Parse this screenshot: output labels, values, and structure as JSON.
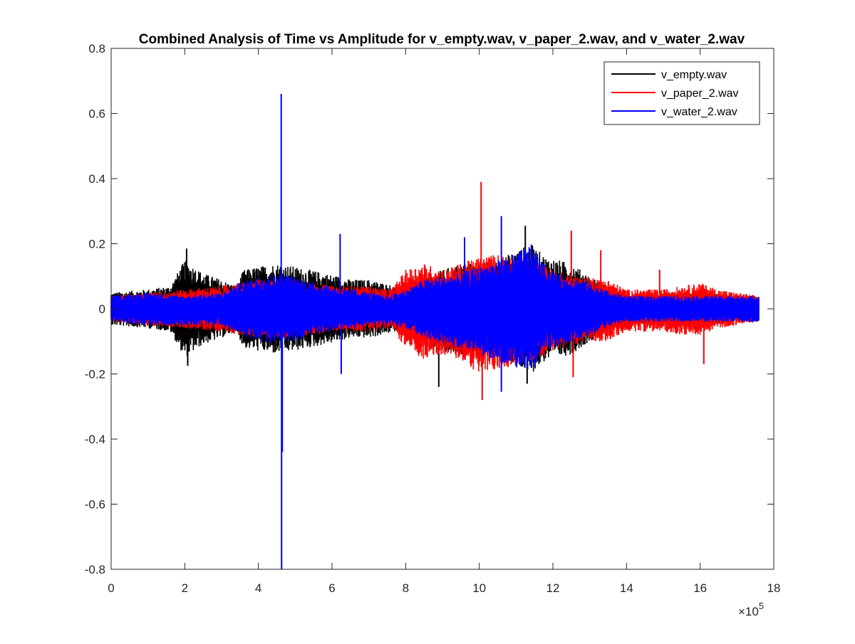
{
  "chart_data": {
    "type": "line",
    "title": "Combined Analysis of Time vs Amplitude for v_empty.wav, v_paper_2.wav, and v_water_2.wav",
    "xlabel": "",
    "ylabel": "",
    "xlim": [
      0,
      18
    ],
    "ylim": [
      -0.8,
      0.8
    ],
    "x_exponent_label": {
      "base": "×10",
      "exponent": "5"
    },
    "x_ticks": [
      {
        "value": 0,
        "label": "0"
      },
      {
        "value": 2,
        "label": "2"
      },
      {
        "value": 4,
        "label": "4"
      },
      {
        "value": 6,
        "label": "6"
      },
      {
        "value": 8,
        "label": "8"
      },
      {
        "value": 10,
        "label": "10"
      },
      {
        "value": 12,
        "label": "12"
      },
      {
        "value": 14,
        "label": "14"
      },
      {
        "value": 16,
        "label": "16"
      },
      {
        "value": 18,
        "label": "18"
      }
    ],
    "y_ticks": [
      {
        "value": 0.8,
        "label": "0.8"
      },
      {
        "value": 0.6,
        "label": "0.6"
      },
      {
        "value": 0.4,
        "label": "0.4"
      },
      {
        "value": 0.2,
        "label": "0.2"
      },
      {
        "value": 0,
        "label": "0"
      },
      {
        "value": -0.2,
        "label": "-0.2"
      },
      {
        "value": -0.4,
        "label": "-0.4"
      },
      {
        "value": -0.6,
        "label": "-0.6"
      },
      {
        "value": -0.8,
        "label": "-0.8"
      }
    ],
    "grid": false,
    "legend_position": "top-right",
    "series": [
      {
        "name": "v_empty.wav",
        "color": "#000000",
        "envelope_x": [
          0,
          1.0,
          1.6,
          2.0,
          2.5,
          3.0,
          3.4,
          3.6,
          4.0,
          4.5,
          5.0,
          5.8,
          6.2,
          6.5,
          7.0,
          7.4,
          8.0,
          8.5,
          9.0,
          9.5,
          10.0,
          10.5,
          11.0,
          11.4,
          11.8,
          12.5,
          13.0,
          13.5,
          14.0,
          15.0,
          16.0,
          17.0,
          17.6
        ],
        "envelope_upper": [
          0.05,
          0.06,
          0.07,
          0.15,
          0.11,
          0.09,
          0.07,
          0.12,
          0.13,
          0.14,
          0.13,
          0.11,
          0.1,
          0.09,
          0.09,
          0.08,
          0.06,
          0.1,
          0.12,
          0.14,
          0.14,
          0.15,
          0.18,
          0.2,
          0.16,
          0.14,
          0.1,
          0.07,
          0.04,
          0.04,
          0.05,
          0.04,
          0.04
        ],
        "envelope_lower": [
          -0.05,
          -0.06,
          -0.07,
          -0.15,
          -0.11,
          -0.09,
          -0.07,
          -0.12,
          -0.13,
          -0.14,
          -0.13,
          -0.11,
          -0.1,
          -0.09,
          -0.09,
          -0.08,
          -0.06,
          -0.1,
          -0.14,
          -0.14,
          -0.14,
          -0.15,
          -0.18,
          -0.2,
          -0.16,
          -0.14,
          -0.1,
          -0.07,
          -0.04,
          -0.04,
          -0.05,
          -0.04,
          -0.04
        ],
        "spikes": [
          {
            "x": 2.05,
            "y": 0.185
          },
          {
            "x": 2.08,
            "y": -0.175
          },
          {
            "x": 8.9,
            "y": -0.24
          },
          {
            "x": 11.25,
            "y": 0.255
          },
          {
            "x": 11.3,
            "y": -0.23
          }
        ]
      },
      {
        "name": "v_paper_2.wav",
        "color": "#ff0000",
        "envelope_x": [
          0,
          1.0,
          2.0,
          3.0,
          4.0,
          5.0,
          6.0,
          7.0,
          7.6,
          8.0,
          8.5,
          9.0,
          9.5,
          10.0,
          10.5,
          11.0,
          11.5,
          12.0,
          12.5,
          13.0,
          13.5,
          14.0,
          14.5,
          15.0,
          15.5,
          16.0,
          16.5,
          17.0,
          17.6
        ],
        "envelope_upper": [
          0.04,
          0.05,
          0.06,
          0.07,
          0.09,
          0.09,
          0.07,
          0.07,
          0.06,
          0.12,
          0.14,
          0.12,
          0.14,
          0.16,
          0.17,
          0.16,
          0.15,
          0.12,
          0.1,
          0.1,
          0.09,
          0.06,
          0.06,
          0.06,
          0.07,
          0.08,
          0.06,
          0.05,
          0.04
        ],
        "envelope_lower": [
          -0.04,
          -0.05,
          -0.06,
          -0.07,
          -0.09,
          -0.09,
          -0.07,
          -0.07,
          -0.06,
          -0.12,
          -0.16,
          -0.14,
          -0.16,
          -0.2,
          -0.19,
          -0.17,
          -0.16,
          -0.13,
          -0.11,
          -0.1,
          -0.1,
          -0.07,
          -0.07,
          -0.07,
          -0.08,
          -0.08,
          -0.06,
          -0.05,
          -0.04
        ],
        "spikes": [
          {
            "x": 10.05,
            "y": 0.39
          },
          {
            "x": 10.08,
            "y": -0.28
          },
          {
            "x": 12.5,
            "y": 0.24
          },
          {
            "x": 12.55,
            "y": -0.21
          },
          {
            "x": 13.3,
            "y": 0.18
          },
          {
            "x": 14.9,
            "y": 0.12
          },
          {
            "x": 16.1,
            "y": -0.17
          }
        ]
      },
      {
        "name": "v_water_2.wav",
        "color": "#0000ff",
        "envelope_x": [
          0,
          1.0,
          2.0,
          3.0,
          3.5,
          4.0,
          4.5,
          5.0,
          5.5,
          6.0,
          6.3,
          6.6,
          7.0,
          7.5,
          8.0,
          8.5,
          9.0,
          9.5,
          10.0,
          10.5,
          11.0,
          11.4,
          11.8,
          12.3,
          12.8,
          13.2,
          13.6,
          14.0,
          15.0,
          16.0,
          17.0,
          17.6
        ],
        "envelope_upper": [
          0.04,
          0.05,
          0.04,
          0.05,
          0.08,
          0.1,
          0.11,
          0.1,
          0.08,
          0.07,
          0.06,
          0.06,
          0.05,
          0.04,
          0.06,
          0.09,
          0.1,
          0.11,
          0.13,
          0.15,
          0.17,
          0.2,
          0.13,
          0.1,
          0.09,
          0.07,
          0.05,
          0.04,
          0.04,
          0.04,
          0.04,
          0.04
        ],
        "envelope_lower": [
          -0.04,
          -0.05,
          -0.05,
          -0.05,
          -0.08,
          -0.1,
          -0.11,
          -0.1,
          -0.08,
          -0.07,
          -0.06,
          -0.06,
          -0.05,
          -0.05,
          -0.06,
          -0.09,
          -0.11,
          -0.12,
          -0.14,
          -0.16,
          -0.18,
          -0.2,
          -0.13,
          -0.11,
          -0.09,
          -0.07,
          -0.05,
          -0.04,
          -0.04,
          -0.04,
          -0.04,
          -0.04
        ],
        "spikes": [
          {
            "x": 4.62,
            "y": 0.66
          },
          {
            "x": 4.63,
            "y": -0.8
          },
          {
            "x": 4.65,
            "y": -0.44
          },
          {
            "x": 6.22,
            "y": 0.23
          },
          {
            "x": 6.25,
            "y": -0.2
          },
          {
            "x": 10.6,
            "y": 0.285
          },
          {
            "x": 10.6,
            "y": -0.255
          },
          {
            "x": 9.6,
            "y": 0.22
          }
        ]
      }
    ]
  }
}
